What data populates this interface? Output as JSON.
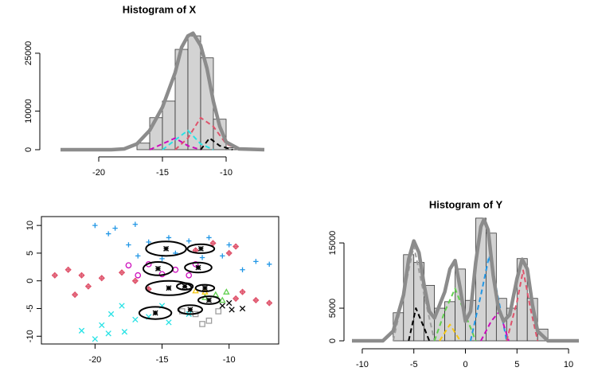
{
  "chart_data": [
    {
      "type": "histogram",
      "title": "Histogram of X",
      "bins": [
        -17,
        -16,
        -15,
        -14,
        -13,
        -12,
        -11,
        -10,
        -9
      ],
      "counts": [
        1700,
        8300,
        12600,
        26000,
        29500,
        23800,
        7900,
        500
      ],
      "color": "#d3d3d3",
      "xlim": [
        -24,
        -6.5
      ],
      "xticks": [
        -20,
        -15,
        -10
      ],
      "ylim": [
        -1200,
        31000
      ],
      "yticks": [
        0,
        10000,
        25000
      ],
      "series": [
        {
          "color": "#8c8c8c",
          "dashed": false,
          "x": [
            -23,
            -19,
            -18,
            -17,
            -16,
            -15,
            -14,
            -13.5,
            -13,
            -12.6,
            -12,
            -11.5,
            -11,
            -10.5,
            -10,
            -9,
            -7
          ],
          "values": [
            0,
            0,
            200,
            1500,
            5000,
            11000,
            20000,
            26500,
            29500,
            30200,
            27000,
            21000,
            12500,
            6000,
            2000,
            200,
            0
          ]
        },
        {
          "color": "#DF536B",
          "dashed": true,
          "x": [
            -14,
            -13,
            -12,
            -11,
            -10,
            -9
          ],
          "values": [
            0,
            3000,
            8300,
            6000,
            1500,
            0
          ]
        },
        {
          "color": "#28E2E5",
          "dashed": true,
          "x": [
            -15,
            -14,
            -13,
            -12,
            -11
          ],
          "values": [
            0,
            2500,
            5000,
            1500,
            0
          ]
        },
        {
          "color": "#CD0BBC",
          "dashed": true,
          "x": [
            -16,
            -15,
            -14,
            -13,
            -12
          ],
          "values": [
            0,
            1500,
            3000,
            1000,
            0
          ]
        },
        {
          "color": "#000000",
          "dashed": true,
          "x": [
            -12,
            -11.3,
            -10.5,
            -9.5
          ],
          "values": [
            0,
            3000,
            1000,
            0
          ]
        }
      ]
    },
    {
      "type": "scatter",
      "xlim": [
        -24,
        -6.3
      ],
      "xticks": [
        -20,
        -15,
        -10
      ],
      "ylim": [
        -11.4,
        11.6
      ],
      "yticks": [
        -10,
        -5,
        0,
        5,
        10
      ],
      "series": [
        {
          "color": "#2297E6",
          "symbol": "plus",
          "x": [
            -17.5,
            -16,
            -14.5,
            -13,
            -11.5,
            -10,
            -16.8,
            -15,
            -9,
            -8,
            -7,
            -18.5,
            -19,
            -20,
            -17,
            -12,
            -14,
            -10.5
          ],
          "values": [
            6.5,
            7,
            7.8,
            7.2,
            7.8,
            6.5,
            4.5,
            4,
            2,
            3.5,
            3,
            9.5,
            8.5,
            10,
            10.2,
            4.2,
            5,
            4.5
          ]
        },
        {
          "color": "#DF536B",
          "symbol": "diamond",
          "x": [
            -12.5,
            -11.2,
            -10,
            -9.5,
            -21,
            -19.5,
            -18,
            -20.5,
            -17,
            -22,
            -23,
            -21.5,
            -9,
            -8,
            -7,
            -9.5,
            -16
          ],
          "values": [
            5.5,
            6.8,
            5,
            6.2,
            1,
            0.5,
            1.5,
            -1,
            0,
            2,
            1,
            -2.5,
            -2,
            -3.5,
            -4,
            -3.2,
            -1.5
          ]
        },
        {
          "color": "#CD0BBC",
          "symbol": "circle",
          "x": [
            -17.5,
            -16,
            -14,
            -13,
            -15,
            -16.8,
            -12.5
          ],
          "values": [
            2.8,
            3,
            2,
            1,
            1.2,
            1,
            3
          ]
        },
        {
          "color": "#61D04F",
          "symbol": "triangle",
          "x": [
            -11,
            -10.5,
            -11.8,
            -10.2
          ],
          "values": [
            -2.5,
            -3.5,
            -3,
            -2
          ]
        },
        {
          "color": "#F5C710",
          "symbol": "triangle",
          "x": [
            -11.8,
            -12.5
          ],
          "values": [
            -2,
            -1.8
          ]
        },
        {
          "color": "#28E2E5",
          "symbol": "cross",
          "x": [
            -18,
            -16,
            -14.5,
            -13,
            -17,
            -18.8,
            -19.5,
            -19,
            -20,
            -21,
            -17.8,
            -15
          ],
          "values": [
            -4.5,
            -6.5,
            -7.5,
            -6,
            -7,
            -6,
            -8,
            -9.5,
            -10.5,
            -9,
            -9.2,
            -4.5
          ]
        },
        {
          "color": "#9E9E9E",
          "symbol": "square",
          "x": [
            -12.5,
            -11.5,
            -10.8,
            -13.5,
            -12
          ],
          "values": [
            -6,
            -7.2,
            -5.5,
            -5.5,
            -7.8
          ]
        },
        {
          "color": "#000000",
          "symbol": "cross",
          "x": [
            -10.5,
            -9.8,
            -9,
            -10
          ],
          "values": [
            -4.5,
            -5.2,
            -5,
            -4
          ]
        }
      ],
      "ellipses": {
        "color": "#000000",
        "x": [
          -14.7,
          -12.1,
          -15.3,
          -12.3,
          -14.5,
          -13.3,
          -11.8,
          -12.9,
          -15.5,
          -11.5
        ],
        "values": [
          5.8,
          5.8,
          2.2,
          2.4,
          -1.3,
          -1.0,
          -1.3,
          -5.2,
          -5.8,
          -3.5
        ],
        "rx": [
          1.5,
          1.0,
          1.1,
          1.0,
          1.7,
          0.6,
          0.7,
          0.9,
          1.2,
          0.8
        ],
        "ry": [
          1.3,
          0.8,
          1.2,
          0.9,
          1.3,
          0.6,
          0.6,
          0.8,
          1.1,
          0.7
        ]
      }
    },
    {
      "type": "histogram",
      "title": "Histogram of Y",
      "bins": [
        -7,
        -6,
        -5,
        -4,
        -3,
        -2,
        -1,
        0,
        1,
        2,
        3,
        4,
        5,
        6,
        7,
        8
      ],
      "counts": [
        4300,
        13200,
        12000,
        8500,
        5000,
        6000,
        11000,
        6200,
        18800,
        16500,
        6500,
        5000,
        12600,
        6500,
        1800
      ],
      "color": "#d3d3d3",
      "xlim": [
        -11,
        11
      ],
      "xticks": [
        -10,
        -5,
        0,
        5,
        10
      ],
      "ylim": [
        -900,
        20500
      ],
      "yticks": [
        0,
        5000,
        15000
      ],
      "series": [
        {
          "color": "#8c8c8c",
          "dashed": false,
          "x": [
            -11,
            -8,
            -7,
            -6,
            -5.5,
            -5,
            -4.5,
            -4,
            -3.5,
            -3,
            -2,
            -1.5,
            -1,
            -0.5,
            0,
            0.5,
            1,
            1.5,
            1.8,
            2.2,
            2.7,
            3.2,
            3.7,
            4.3,
            5,
            5.5,
            6,
            6.5,
            7,
            8,
            11
          ],
          "values": [
            0,
            0,
            1500,
            7000,
            12500,
            15300,
            13500,
            8500,
            4500,
            3500,
            7500,
            11000,
            12300,
            8000,
            3000,
            4500,
            12000,
            17500,
            18600,
            17000,
            10000,
            5000,
            3000,
            4000,
            9500,
            12500,
            11000,
            5500,
            1500,
            0,
            0
          ]
        },
        {
          "color": "#9E9E9E",
          "dashed": true,
          "x": [
            -7,
            -6,
            -5,
            -4,
            -3
          ],
          "values": [
            0,
            7000,
            14500,
            7000,
            0
          ]
        },
        {
          "color": "#000000",
          "dashed": true,
          "x": [
            -5.5,
            -4.8,
            -4,
            -3.5
          ],
          "values": [
            0,
            5000,
            2000,
            0
          ]
        },
        {
          "color": "#61D04F",
          "dashed": true,
          "x": [
            -3,
            -2,
            -1,
            0,
            1
          ],
          "values": [
            0,
            4500,
            8000,
            4000,
            0
          ]
        },
        {
          "color": "#2297E6",
          "dashed": true,
          "x": [
            0.5,
            1.5,
            2.3,
            3,
            4
          ],
          "values": [
            0,
            7000,
            13000,
            8000,
            0
          ]
        },
        {
          "color": "#DF536B",
          "dashed": true,
          "x": [
            4,
            5,
            5.6,
            6.3,
            7
          ],
          "values": [
            0,
            6000,
            10800,
            5000,
            0
          ]
        },
        {
          "color": "#CD0BBC",
          "dashed": true,
          "x": [
            1.5,
            2.5,
            3.3,
            4.2
          ],
          "values": [
            0,
            3000,
            4500,
            0
          ]
        },
        {
          "color": "#F5C710",
          "dashed": true,
          "x": [
            -2.5,
            -1.5,
            -0.5
          ],
          "values": [
            0,
            2500,
            0
          ]
        }
      ]
    }
  ]
}
